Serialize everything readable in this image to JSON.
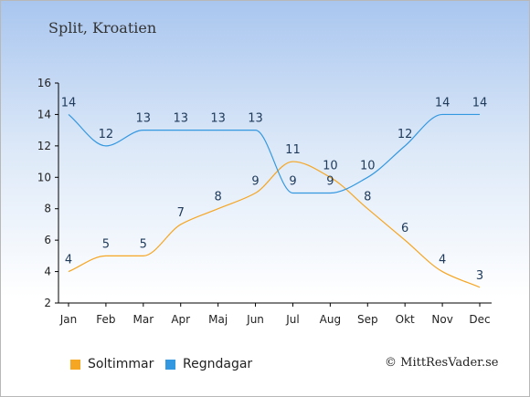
{
  "location": "Split, Kroatien",
  "credit": "© MittResVader.se",
  "colors": {
    "sun": "#f5a623",
    "rain": "#3498e0",
    "axis": "#000000",
    "label": "#1f3a5a"
  },
  "chart_data": {
    "type": "line",
    "categories": [
      "Jan",
      "Feb",
      "Mar",
      "Apr",
      "Maj",
      "Jun",
      "Jul",
      "Aug",
      "Sep",
      "Okt",
      "Nov",
      "Dec"
    ],
    "series": [
      {
        "name": "Soltimmar",
        "values": [
          4,
          5,
          5,
          7,
          8,
          9,
          11,
          10,
          8,
          6,
          4,
          3
        ]
      },
      {
        "name": "Regndagar",
        "values": [
          14,
          12,
          13,
          13,
          13,
          13,
          9,
          9,
          10,
          12,
          14,
          14
        ]
      }
    ],
    "ylim": [
      2,
      16
    ],
    "yticks": [
      2,
      4,
      6,
      8,
      10,
      12,
      14,
      16
    ],
    "legend_position": "bottom-left",
    "grid": false
  }
}
